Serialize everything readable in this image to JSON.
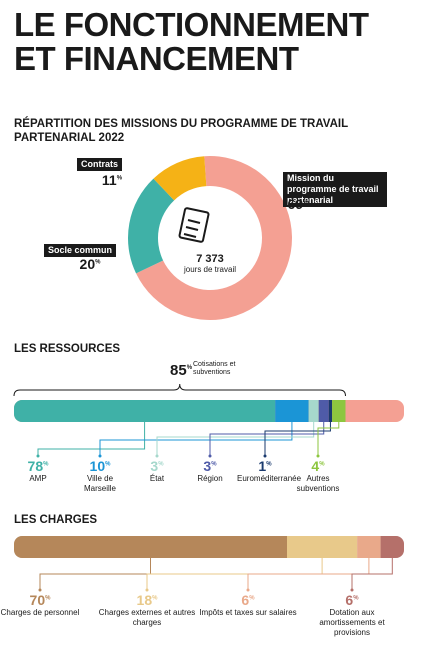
{
  "title": "LE FONCTIONNEMENT ET FINANCEMENT",
  "chart_data": [
    {
      "type": "donut",
      "title": "RÉPARTITION DES MISSIONS DU PROGRAMME DE TRAVAIL PARTENARIAL 2022",
      "unit": "%",
      "categories": [
        "Mission du programme de travail partenarial",
        "Socle commun",
        "Contrats"
      ],
      "values": [
        69,
        20,
        11
      ],
      "colors": [
        "#f4a093",
        "#3fb1a7",
        "#f5b216"
      ],
      "center": {
        "value": 7373,
        "label": "7 373"
      },
      "center_caption": "jours de travail"
    },
    {
      "type": "stacked-bar",
      "title": "LES RESSOURCES",
      "unit": "%",
      "xlim": [
        0,
        100
      ],
      "total": 85,
      "total_caption": "Cotisations et subventions",
      "rest_color": "#f4a093",
      "categories": [
        "AMP",
        "Ville de Marseille",
        "État",
        "Région",
        "Euroméditerranée",
        "Autres subventions"
      ],
      "values": [
        78,
        10,
        3,
        3,
        1,
        4
      ],
      "colors": [
        "#3fb1a7",
        "#1b95d6",
        "#a6d8cc",
        "#4f5ba8",
        "#1a3a6e",
        "#8dc63f"
      ]
    },
    {
      "type": "stacked-bar",
      "title": "LES CHARGES",
      "unit": "%",
      "xlim": [
        0,
        100
      ],
      "categories": [
        "Charges de personnel",
        "Charges externes et autres charges",
        "Impôts et taxes sur salaires",
        "Dotation aux amortissements et provisions"
      ],
      "values": [
        70,
        18,
        6,
        6
      ],
      "colors": [
        "#b5875a",
        "#e8c98a",
        "#e9a98a",
        "#b5706a"
      ]
    }
  ]
}
